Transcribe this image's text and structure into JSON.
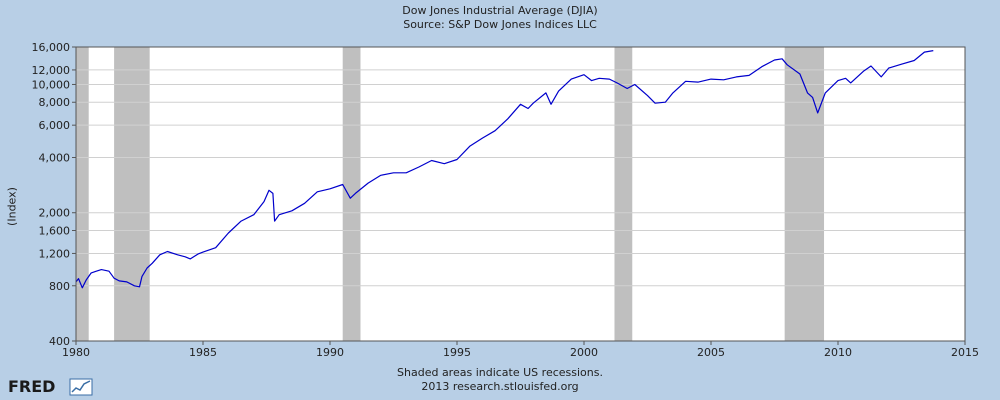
{
  "logo": {
    "text": "FRED"
  },
  "chart_data": {
    "type": "line",
    "title": "Dow Jones Industrial Average (DJIA)",
    "subtitle": "Source: S&P Dow Jones Indices LLC",
    "xlabel": "",
    "ylabel": "(Index)",
    "y_scale": "log",
    "xlim": [
      1980,
      2015
    ],
    "ylim": [
      400,
      16000
    ],
    "x_ticks": [
      1980,
      1985,
      1990,
      1995,
      2000,
      2005,
      2010,
      2015
    ],
    "x_tick_labels": [
      "1980",
      "1985",
      "1990",
      "1995",
      "2000",
      "2005",
      "2010",
      "2015"
    ],
    "y_ticks": [
      400,
      800,
      1200,
      1600,
      2000,
      4000,
      6000,
      8000,
      10000,
      12000,
      16000
    ],
    "y_tick_labels": [
      "400",
      "800",
      "1,200",
      "1,600",
      "2,000",
      "4,000",
      "6,000",
      "8,000",
      "10,000",
      "12,000",
      "16,000"
    ],
    "grid": true,
    "line_color": "#0000cc",
    "recession_color": "#bfbfbf",
    "recessions": [
      {
        "start": 1980.0,
        "end": 1980.5
      },
      {
        "start": 1981.5,
        "end": 1982.9
      },
      {
        "start": 1990.5,
        "end": 1991.2
      },
      {
        "start": 2001.2,
        "end": 2001.9
      },
      {
        "start": 2007.9,
        "end": 2009.45
      }
    ],
    "series": [
      {
        "x": [
          1980.0,
          1980.1,
          1980.25,
          1980.4,
          1980.6,
          1980.8,
          1981.0,
          1981.3,
          1981.5,
          1981.7,
          1982.0,
          1982.3,
          1982.5,
          1982.6,
          1982.8,
          1983.0,
          1983.3,
          1983.6,
          1984.0,
          1984.3,
          1984.5,
          1984.8,
          1985.0,
          1985.5,
          1986.0,
          1986.5,
          1987.0,
          1987.4,
          1987.6,
          1987.75,
          1987.82,
          1988.0,
          1988.5,
          1989.0,
          1989.5,
          1990.0,
          1990.5,
          1990.8,
          1991.0,
          1991.5,
          1992.0,
          1992.5,
          1993.0,
          1993.5,
          1994.0,
          1994.5,
          1995.0,
          1995.5,
          1996.0,
          1996.5,
          1997.0,
          1997.5,
          1997.8,
          1998.0,
          1998.5,
          1998.7,
          1999.0,
          1999.5,
          2000.0,
          2000.3,
          2000.6,
          2001.0,
          2001.3,
          2001.7,
          2002.0,
          2002.5,
          2002.8,
          2003.2,
          2003.5,
          2004.0,
          2004.5,
          2005.0,
          2005.5,
          2006.0,
          2006.5,
          2007.0,
          2007.5,
          2007.8,
          2008.0,
          2008.5,
          2008.8,
          2009.0,
          2009.2,
          2009.5,
          2010.0,
          2010.3,
          2010.5,
          2011.0,
          2011.3,
          2011.7,
          2012.0,
          2012.5,
          2013.0,
          2013.4,
          2013.75
        ],
        "y": [
          840,
          875,
          780,
          860,
          940,
          960,
          980,
          960,
          880,
          850,
          840,
          800,
          790,
          900,
          1000,
          1060,
          1180,
          1230,
          1180,
          1150,
          1120,
          1190,
          1220,
          1290,
          1550,
          1800,
          1950,
          2300,
          2650,
          2550,
          1800,
          1950,
          2050,
          2250,
          2600,
          2700,
          2850,
          2400,
          2550,
          2900,
          3200,
          3300,
          3300,
          3550,
          3850,
          3700,
          3900,
          4600,
          5100,
          5600,
          6500,
          7800,
          7400,
          7900,
          9000,
          7800,
          9200,
          10700,
          11300,
          10500,
          10800,
          10700,
          10200,
          9500,
          10000,
          8700,
          7900,
          8000,
          9000,
          10400,
          10300,
          10700,
          10600,
          11000,
          11200,
          12500,
          13600,
          13800,
          12800,
          11400,
          9000,
          8500,
          7000,
          9000,
          10500,
          10800,
          10200,
          11800,
          12600,
          11000,
          12300,
          12900,
          13500,
          15000,
          15300
        ]
      }
    ]
  },
  "notes": {
    "line1": "Shaded areas indicate US recessions.",
    "line2": "2013 research.stlouisfed.org"
  }
}
